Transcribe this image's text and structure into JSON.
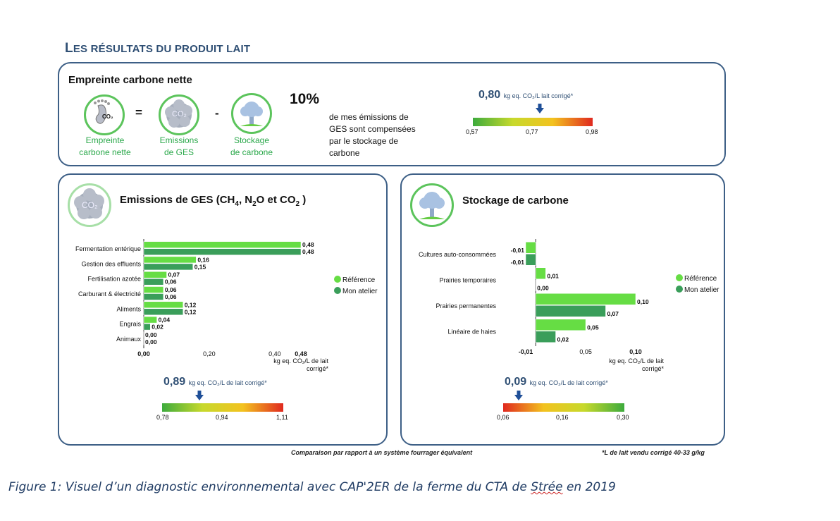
{
  "colors": {
    "frame": "#3d5f86",
    "reference": "#66dd44",
    "atelier": "#3a9e5a",
    "title_blue": "#2f4f74",
    "caption_blue": "#1f3b63",
    "label_green": "#2aa84a"
  },
  "section_title": {
    "first": "L",
    "rest": "ES RÉSULTATS DU PRODUIT LAIT"
  },
  "top": {
    "title": "Empreinte carbone nette",
    "icons": [
      {
        "icon": "footprint-co2-icon",
        "label_l1": "Empreinte",
        "label_l2": "carbone nette",
        "glyph": "CO₂"
      },
      {
        "icon": "co2-cloud-icon",
        "label_l1": "Emissions",
        "label_l2": "de GES",
        "glyph": "CO₂"
      },
      {
        "icon": "tree-icon",
        "label_l1": "Stockage",
        "label_l2": "de carbone",
        "glyph": ""
      }
    ],
    "op_equal": "=",
    "op_minus": "-",
    "percent": "10%",
    "percent_text": [
      "de mes émissions de",
      "GES sont compensées",
      "par le stockage de",
      "carbone"
    ],
    "gauge": {
      "value": "0,80",
      "unit": "kg eq. CO₂/L lait corrigé*",
      "ticks": [
        "0,57",
        "0,77",
        "0,98"
      ],
      "position": 0.56,
      "direction": "green-to-red"
    }
  },
  "left": {
    "title_parts": [
      "Emissions de GES (CH",
      "4",
      ", N",
      "2",
      "O et CO",
      "2",
      " )"
    ],
    "icon": "co2-cloud-icon",
    "icon_glyph": "CO₂",
    "legend": [
      "Référence",
      "Mon atelier"
    ],
    "axis_unit": [
      "kg eq. CO₂/L de lait",
      "corrigé*"
    ],
    "gauge": {
      "value": "0,89",
      "unit": "kg eq. CO₂/L de lait corrigé*",
      "ticks": [
        "0,78",
        "0,94",
        "1,11"
      ],
      "position": 0.31,
      "direction": "green-to-red"
    }
  },
  "right": {
    "title": "Stockage de carbone",
    "icon": "tree-icon",
    "legend": [
      "Référence",
      "Mon atelier"
    ],
    "axis_unit": [
      "kg eq. CO₂/L de lait",
      "corrigé*"
    ],
    "gauge": {
      "value": "0,09",
      "unit": "kg eq. CO₂/L de lait corrigé*",
      "ticks": [
        "0,06",
        "0,16",
        "0,30"
      ],
      "position": 0.125,
      "direction": "red-to-green"
    }
  },
  "chart_data": [
    {
      "type": "bar",
      "orientation": "horizontal",
      "title": "Emissions de GES (CH4, N2O et CO2 )",
      "categories": [
        "Fermentation entérique",
        "Gestion des effluents",
        "Fertilisation azotée",
        "Carburant & électricité",
        "Aliments",
        "Engrais",
        "Animaux"
      ],
      "series": [
        {
          "name": "Référence",
          "values": [
            0.48,
            0.16,
            0.07,
            0.06,
            0.12,
            0.04,
            0.0
          ],
          "labels": [
            "0,48",
            "0,16",
            "0,07",
            "0,06",
            "0,12",
            "0,04",
            "0,00"
          ]
        },
        {
          "name": "Mon atelier",
          "values": [
            0.48,
            0.15,
            0.06,
            0.06,
            0.12,
            0.02,
            0.0
          ],
          "labels": [
            "0,48",
            "0,15",
            "0,06",
            "0,06",
            "0,12",
            "0,02",
            "0,00"
          ]
        }
      ],
      "xlim": [
        0,
        0.48
      ],
      "xticks": [
        {
          "value": 0.0,
          "label": "0,00",
          "bold": true
        },
        {
          "value": 0.2,
          "label": "0,20",
          "bold": false
        },
        {
          "value": 0.4,
          "label": "0,40",
          "bold": false
        },
        {
          "value": 0.48,
          "label": "0,48",
          "bold": true
        }
      ],
      "xlabel": "kg eq. CO₂/L de lait corrigé*",
      "legend_position": "right"
    },
    {
      "type": "bar",
      "orientation": "horizontal",
      "title": "Stockage de carbone",
      "categories": [
        "Cultures auto-consommées",
        "Prairies temporaires",
        "Prairies permanentes",
        "Linéaire de haies"
      ],
      "series": [
        {
          "name": "Référence",
          "values": [
            -0.01,
            0.01,
            0.1,
            0.05
          ],
          "labels": [
            "-0,01",
            "0,01",
            "0,10",
            "0,05"
          ]
        },
        {
          "name": "Mon atelier",
          "values": [
            -0.01,
            0.0,
            0.07,
            0.02
          ],
          "labels": [
            "-0,01",
            "0,00",
            "0,07",
            "0,02"
          ]
        }
      ],
      "xlim": [
        -0.01,
        0.1
      ],
      "xticks": [
        {
          "value": -0.01,
          "label": "-0,01",
          "bold": true
        },
        {
          "value": 0.05,
          "label": "0,05",
          "bold": false
        },
        {
          "value": 0.1,
          "label": "0,10",
          "bold": true
        }
      ],
      "xlabel": "kg eq. CO₂/L de lait corrigé*",
      "legend_position": "right"
    }
  ],
  "footnotes": {
    "comparison": "Comparaison par rapport à un système fourrager équivalent",
    "note": "*L de lait vendu corrigé 40-33 g/kg"
  },
  "caption": {
    "before": "Figure 1: Visuel d’un diagnostic environnemental avec CAP'2ER de la ferme du CTA de ",
    "underlined": "Strée",
    "after": " en 2019"
  }
}
